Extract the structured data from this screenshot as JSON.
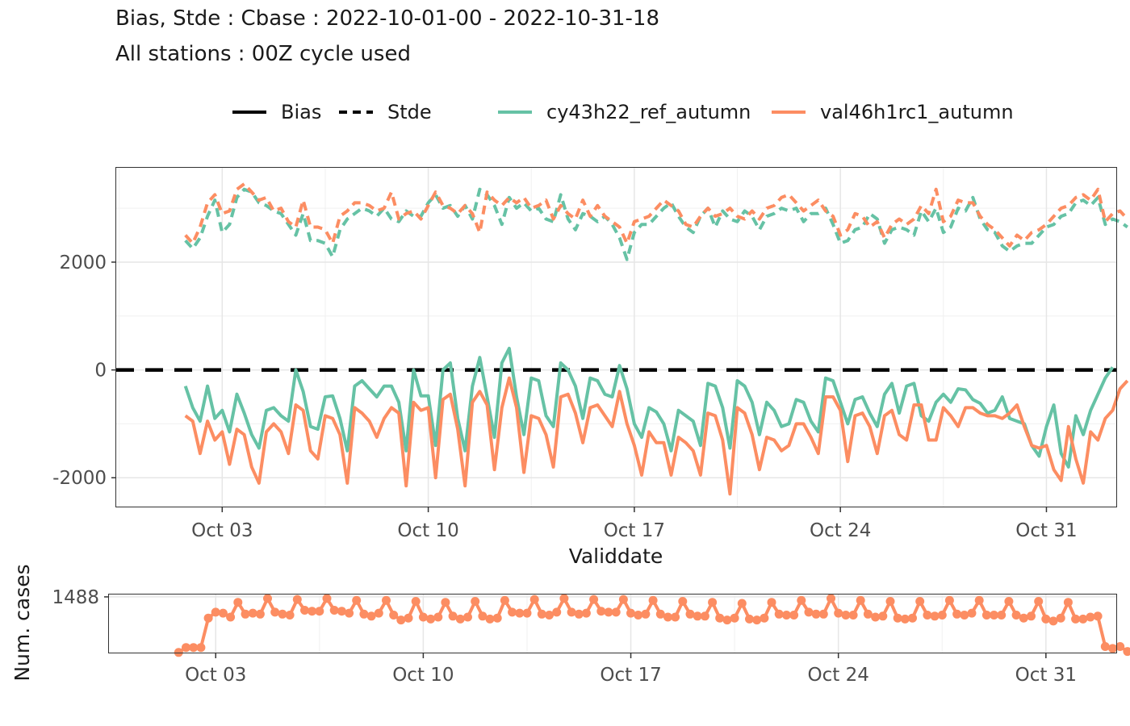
{
  "title": "Bias, Stde : Cbase : 2022-10-01-00 - 2022-10-31-18",
  "subtitle": "All stations : 00Z cycle used",
  "colors": {
    "cy43h22_ref_autumn": "#66c2a5",
    "val46h1rc1_autumn": "#fc8d62",
    "zero_line": "#000000"
  },
  "legend": {
    "placement": "top",
    "linetype_items": [
      {
        "label": "Bias",
        "style": "solid"
      },
      {
        "label": "Stde",
        "style": "dashed"
      }
    ],
    "series_items": [
      {
        "label": "cy43h22_ref_autumn"
      },
      {
        "label": "val46h1rc1_autumn"
      }
    ]
  },
  "chart_data": [
    {
      "type": "line",
      "xlabel": "Validdate",
      "ylabel": "",
      "x_ticks": [
        {
          "label": "Oct 03",
          "day": 3
        },
        {
          "label": "Oct 10",
          "day": 10
        },
        {
          "label": "Oct 17",
          "day": 17
        },
        {
          "label": "Oct 24",
          "day": 24
        },
        {
          "label": "Oct 31",
          "day": 31
        }
      ],
      "y_ticks": [
        {
          "label": "2000",
          "value": 2000
        },
        {
          "label": "0",
          "value": 0
        },
        {
          "label": "-2000",
          "value": -2000
        }
      ],
      "xlim_days": [
        -0.6,
        33.4
      ],
      "ylim": [
        -2550,
        3750
      ],
      "grid": true,
      "x_start": "2022-10-01 18:00",
      "x_step_hours": 6,
      "hline": 0,
      "series": [
        {
          "name": "cy43h22_ref_autumn",
          "metric": "Bias",
          "values": [
            -300,
            -700,
            -950,
            -300,
            -900,
            -750,
            -1150,
            -450,
            -800,
            -1200,
            -1450,
            -750,
            -700,
            -850,
            -950,
            0,
            -400,
            -1050,
            -1100,
            -500,
            -480,
            -900,
            -1500,
            -300,
            -200,
            -350,
            -500,
            -300,
            -300,
            -600,
            -1500,
            0,
            -480,
            -480,
            -1400,
            0,
            130,
            -900,
            -1500,
            -300,
            230,
            -500,
            -1250,
            130,
            400,
            -500,
            -1200,
            -150,
            -200,
            -850,
            -1050,
            130,
            0,
            -300,
            -900,
            -150,
            -200,
            -450,
            -500,
            80,
            -350,
            -1000,
            -1250,
            -700,
            -780,
            -1000,
            -1500,
            -750,
            -850,
            -950,
            -1400,
            -250,
            -300,
            -700,
            -1450,
            -200,
            -300,
            -600,
            -1200,
            -600,
            -750,
            -1050,
            -1000,
            -550,
            -600,
            -950,
            -1150,
            -150,
            -200,
            -600,
            -1000,
            -550,
            -500,
            -800,
            -1050,
            -450,
            -250,
            -800,
            -300,
            -250,
            -850,
            -950,
            -600,
            -450,
            -600,
            -350,
            -370,
            -550,
            -620,
            -800,
            -750,
            -500,
            -900,
            -950,
            -1000,
            -1400,
            -1600,
            -1050,
            -650,
            -1550,
            -1800,
            -850,
            -1200,
            -750,
            -450,
            -150,
            50
          ]
        },
        {
          "name": "val46h1rc1_autumn",
          "metric": "Bias",
          "values": [
            -850,
            -950,
            -1550,
            -950,
            -1300,
            -1150,
            -1750,
            -1100,
            -1200,
            -1800,
            -2100,
            -1150,
            -1000,
            -1150,
            -1550,
            -650,
            -750,
            -1500,
            -1650,
            -850,
            -900,
            -1200,
            -2100,
            -700,
            -800,
            -950,
            -1250,
            -900,
            -700,
            -800,
            -2150,
            -600,
            -750,
            -700,
            -2000,
            -550,
            -450,
            -1100,
            -2150,
            -600,
            -400,
            -650,
            -1850,
            -700,
            -150,
            -700,
            -1900,
            -850,
            -900,
            -1200,
            -1800,
            -500,
            -450,
            -800,
            -1350,
            -700,
            -650,
            -850,
            -1050,
            -400,
            -1000,
            -1400,
            -1950,
            -1150,
            -1350,
            -1350,
            -1950,
            -1250,
            -1350,
            -1500,
            -1950,
            -800,
            -850,
            -1300,
            -2300,
            -700,
            -800,
            -1200,
            -1850,
            -1250,
            -1300,
            -1500,
            -1400,
            -1000,
            -1000,
            -1250,
            -1550,
            -500,
            -500,
            -750,
            -1700,
            -850,
            -800,
            -1050,
            -1550,
            -850,
            -750,
            -1200,
            -1300,
            -650,
            -650,
            -1300,
            -1300,
            -700,
            -850,
            -1050,
            -700,
            -700,
            -800,
            -850,
            -850,
            -900,
            -800,
            -650,
            -1050,
            -1400,
            -1450,
            -1400,
            -1850,
            -2050,
            -1050,
            -1650,
            -2100,
            -1150,
            -1300,
            -900,
            -750,
            -350,
            -200
          ]
        },
        {
          "name": "cy43h22_ref_autumn",
          "metric": "Stde",
          "values": [
            2400,
            2250,
            2450,
            2850,
            3150,
            2550,
            2700,
            3200,
            3350,
            3300,
            3100,
            3050,
            2950,
            2900,
            2700,
            2500,
            2900,
            2400,
            2400,
            2350,
            2100,
            2600,
            2800,
            2900,
            3000,
            2950,
            2850,
            3000,
            2800,
            2750,
            2950,
            2850,
            2850,
            3100,
            3250,
            3000,
            3050,
            2850,
            3050,
            2800,
            3350,
            3250,
            3050,
            2700,
            3200,
            3000,
            3100,
            2950,
            3000,
            2800,
            2750,
            3250,
            2800,
            2600,
            2900,
            2850,
            2750,
            2850,
            2700,
            2450,
            2050,
            2550,
            2700,
            2700,
            2850,
            3000,
            3100,
            2850,
            2650,
            2550,
            2850,
            3000,
            2650,
            2950,
            2800,
            2750,
            2950,
            2850,
            2600,
            2850,
            2900,
            3000,
            2950,
            3000,
            2750,
            2900,
            2900,
            3000,
            2700,
            2350,
            2400,
            2600,
            2650,
            2900,
            2800,
            2350,
            2600,
            2650,
            2600,
            2500,
            2950,
            2750,
            3000,
            2550,
            2650,
            3000,
            2950,
            3200,
            2800,
            2600,
            2550,
            2300,
            2200,
            2300,
            2350,
            2350,
            2500,
            2650,
            2700,
            2850,
            2900,
            3100,
            3150,
            3050,
            3200,
            2700,
            2800,
            2750,
            2650
          ]
        },
        {
          "name": "val46h1rc1_autumn",
          "metric": "Stde",
          "values": [
            2500,
            2350,
            2650,
            3100,
            3250,
            2900,
            2950,
            3350,
            3450,
            3300,
            3150,
            3200,
            2950,
            3000,
            2750,
            2650,
            3150,
            2650,
            2650,
            2600,
            2350,
            2850,
            2950,
            3100,
            3100,
            3050,
            2950,
            3000,
            3300,
            2800,
            2900,
            2950,
            2800,
            3050,
            3300,
            3050,
            3000,
            2900,
            3050,
            2900,
            2550,
            3300,
            3150,
            3050,
            3200,
            3100,
            3200,
            3000,
            3050,
            3150,
            2800,
            3050,
            2900,
            2800,
            3150,
            2850,
            3050,
            2850,
            2750,
            2650,
            2350,
            2750,
            2800,
            2850,
            3000,
            3150,
            3050,
            2950,
            2700,
            2650,
            2850,
            3000,
            2850,
            2900,
            3000,
            2850,
            2800,
            2950,
            2800,
            3000,
            3050,
            3200,
            3250,
            3100,
            2950,
            3050,
            3150,
            2950,
            2850,
            2500,
            2600,
            2900,
            2850,
            2650,
            2750,
            2450,
            2700,
            2800,
            2700,
            2800,
            3050,
            2900,
            3350,
            2750,
            2850,
            3150,
            3100,
            3100,
            2850,
            2700,
            2600,
            2450,
            2300,
            2500,
            2400,
            2550,
            2600,
            2700,
            2850,
            3000,
            3050,
            3200,
            3250,
            3150,
            3350,
            2750,
            2900,
            2950,
            2800
          ]
        }
      ]
    },
    {
      "type": "line",
      "ylabel": "Num. cases",
      "xlabel": "",
      "y_ticks": [
        {
          "label": "1488",
          "value": 1488
        }
      ],
      "ylim": [
        1200,
        1500
      ],
      "x_ticks": [
        {
          "label": "Oct 03",
          "day": 3
        },
        {
          "label": "Oct 10",
          "day": 10
        },
        {
          "label": "Oct 17",
          "day": 17
        },
        {
          "label": "Oct 24",
          "day": 24
        },
        {
          "label": "Oct 31",
          "day": 31
        }
      ],
      "xlim_days": [
        -0.6,
        33.4
      ],
      "grid": true,
      "x_start": "2022-10-01 18:00",
      "x_step_hours": 6,
      "series": [
        {
          "name": "val46h1rc1_autumn",
          "values": [
            1205,
            1230,
            1230,
            1230,
            1380,
            1410,
            1405,
            1385,
            1460,
            1400,
            1405,
            1400,
            1480,
            1410,
            1400,
            1395,
            1475,
            1420,
            1415,
            1415,
            1480,
            1420,
            1415,
            1405,
            1470,
            1400,
            1390,
            1405,
            1470,
            1395,
            1370,
            1380,
            1465,
            1385,
            1375,
            1385,
            1460,
            1390,
            1375,
            1385,
            1465,
            1390,
            1375,
            1380,
            1470,
            1410,
            1405,
            1405,
            1475,
            1400,
            1395,
            1410,
            1480,
            1410,
            1400,
            1405,
            1475,
            1415,
            1410,
            1410,
            1475,
            1405,
            1395,
            1400,
            1470,
            1400,
            1385,
            1385,
            1465,
            1400,
            1390,
            1390,
            1460,
            1380,
            1370,
            1380,
            1455,
            1375,
            1370,
            1380,
            1460,
            1400,
            1395,
            1395,
            1470,
            1410,
            1400,
            1400,
            1480,
            1405,
            1395,
            1395,
            1470,
            1400,
            1385,
            1390,
            1465,
            1380,
            1375,
            1380,
            1465,
            1395,
            1390,
            1395,
            1470,
            1400,
            1395,
            1405,
            1470,
            1395,
            1395,
            1395,
            1465,
            1395,
            1380,
            1390,
            1465,
            1375,
            1365,
            1380,
            1460,
            1375,
            1375,
            1385,
            1390,
            1235,
            1225,
            1235,
            1210
          ]
        }
      ]
    }
  ]
}
